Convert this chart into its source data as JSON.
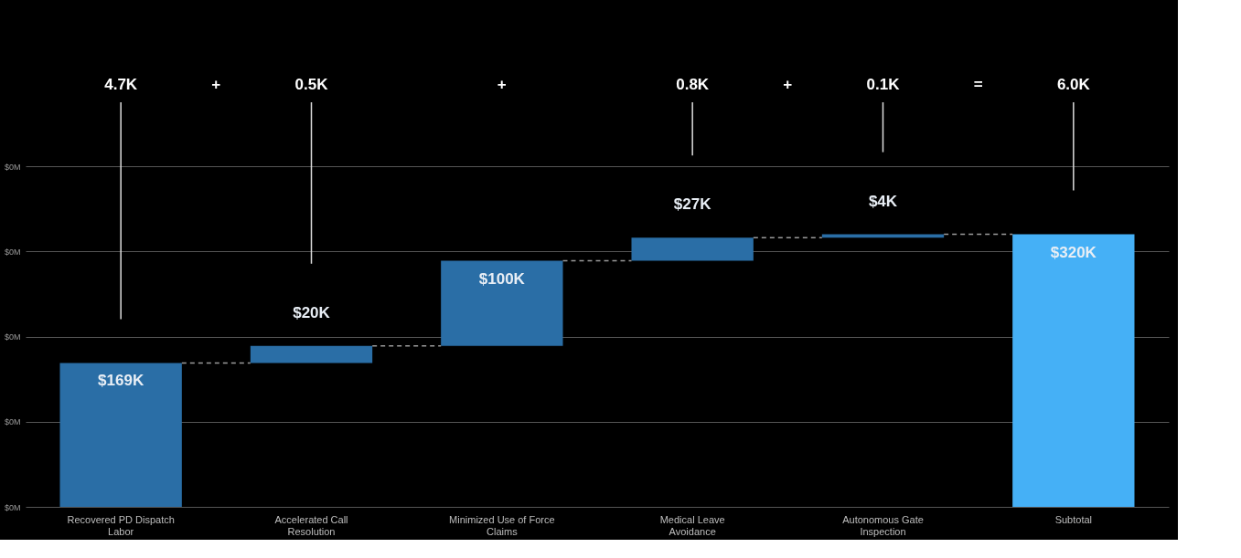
{
  "chart_data": {
    "type": "bar",
    "categories": [
      "Recovered PD Dispatch Labor",
      "Accelerated Call Resolution",
      "Minimized Use of Force Claims",
      "Medical Leave Avoidance",
      "Autonomous Gate Inspection",
      "Subtotal"
    ],
    "base": [
      0,
      169,
      189,
      289,
      316,
      0
    ],
    "values": [
      169,
      20,
      100,
      27,
      4,
      320
    ],
    "colors": [
      "#2a6ea6",
      "#2a6ea6",
      "#2a6ea6",
      "#2a6ea6",
      "#2a6ea6",
      "#45b0f6"
    ],
    "value_labels": [
      "$169K",
      "$20K",
      "$100K",
      "$27K",
      "$4K",
      "$320K"
    ],
    "ylim": [
      0,
      400
    ],
    "yticks": [
      {
        "value": 0,
        "label": "$0M"
      },
      {
        "value": 100,
        "label": "$0M"
      },
      {
        "value": 200,
        "label": "$0M"
      },
      {
        "value": 300,
        "label": "$0M"
      },
      {
        "value": 400,
        "label": "$0M"
      }
    ],
    "grid": "y",
    "annotations": [
      "4.7K",
      "+",
      "0.5K",
      "+",
      "0.8K",
      "+",
      "0.1K",
      "=",
      "6.0K"
    ]
  }
}
